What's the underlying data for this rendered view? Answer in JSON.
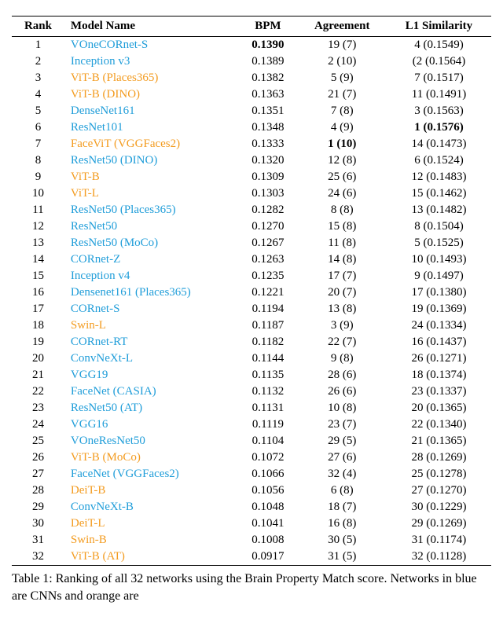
{
  "table": {
    "headers": {
      "rank": "Rank",
      "model": "Model Name",
      "bpm": "BPM",
      "agreement": "Agreement",
      "l1": "L1 Similarity"
    },
    "colors": {
      "cnn": "#1f9dd9",
      "vit": "#f39b1f"
    },
    "rows": [
      {
        "rank": "1",
        "model": "VOneCORnet-S",
        "type": "cnn",
        "bpm": "0.1390",
        "bpm_bold": true,
        "agr": "19 (7)",
        "l1": "4 (0.1549)"
      },
      {
        "rank": "2",
        "model": "Inception v3",
        "type": "cnn",
        "bpm": "0.1389",
        "agr": "2 (10)",
        "l1": "(2 (0.1564)"
      },
      {
        "rank": "3",
        "model": "ViT-B (Places365)",
        "type": "vit",
        "bpm": "0.1382",
        "agr": "5 (9)",
        "l1": "7 (0.1517)"
      },
      {
        "rank": "4",
        "model": "ViT-B (DINO)",
        "type": "vit",
        "bpm": "0.1363",
        "agr": "21 (7)",
        "l1": "11 (0.1491)"
      },
      {
        "rank": "5",
        "model": "DenseNet161",
        "type": "cnn",
        "bpm": "0.1351",
        "agr": "7 (8)",
        "l1": "3 (0.1563)"
      },
      {
        "rank": "6",
        "model": "ResNet101",
        "type": "cnn",
        "bpm": "0.1348",
        "agr": "4 (9)",
        "l1": "1 (0.1576)",
        "l1_bold": true
      },
      {
        "rank": "7",
        "model": "FaceViT (VGGFaces2)",
        "type": "vit",
        "bpm": "0.1333",
        "agr": "1 (10)",
        "agr_bold": true,
        "l1": "14 (0.1473)"
      },
      {
        "rank": "8",
        "model": "ResNet50 (DINO)",
        "type": "cnn",
        "bpm": "0.1320",
        "agr": "12 (8)",
        "l1": "6 (0.1524)"
      },
      {
        "rank": "9",
        "model": "ViT-B",
        "type": "vit",
        "bpm": "0.1309",
        "agr": "25 (6)",
        "l1": "12 (0.1483)"
      },
      {
        "rank": "10",
        "model": "ViT-L",
        "type": "vit",
        "bpm": "0.1303",
        "agr": "24 (6)",
        "l1": "15 (0.1462)"
      },
      {
        "rank": "11",
        "model": "ResNet50 (Places365)",
        "type": "cnn",
        "bpm": "0.1282",
        "agr": "8 (8)",
        "l1": "13 (0.1482)"
      },
      {
        "rank": "12",
        "model": "ResNet50",
        "type": "cnn",
        "bpm": "0.1270",
        "agr": "15 (8)",
        "l1": "8 (0.1504)"
      },
      {
        "rank": "13",
        "model": "ResNet50 (MoCo)",
        "type": "cnn",
        "bpm": "0.1267",
        "agr": "11 (8)",
        "l1": "5 (0.1525)"
      },
      {
        "rank": "14",
        "model": "CORnet-Z",
        "type": "cnn",
        "bpm": "0.1263",
        "agr": "14 (8)",
        "l1": "10 (0.1493)"
      },
      {
        "rank": "15",
        "model": "Inception v4",
        "type": "cnn",
        "bpm": "0.1235",
        "agr": "17 (7)",
        "l1": "9 (0.1497)"
      },
      {
        "rank": "16",
        "model": "Densenet161 (Places365)",
        "type": "cnn",
        "bpm": "0.1221",
        "agr": "20 (7)",
        "l1": "17 (0.1380)"
      },
      {
        "rank": "17",
        "model": "CORnet-S",
        "type": "cnn",
        "bpm": "0.1194",
        "agr": "13 (8)",
        "l1": "19 (0.1369)"
      },
      {
        "rank": "18",
        "model": "Swin-L",
        "type": "vit",
        "bpm": "0.1187",
        "agr": "3 (9)",
        "l1": "24 (0.1334)"
      },
      {
        "rank": "19",
        "model": "CORnet-RT",
        "type": "cnn",
        "bpm": "0.1182",
        "agr": "22 (7)",
        "l1": "16 (0.1437)"
      },
      {
        "rank": "20",
        "model": "ConvNeXt-L",
        "type": "cnn",
        "bpm": "0.1144",
        "agr": "9 (8)",
        "l1": "26 (0.1271)"
      },
      {
        "rank": "21",
        "model": "VGG19",
        "type": "cnn",
        "bpm": "0.1135",
        "agr": "28 (6)",
        "l1": "18 (0.1374)"
      },
      {
        "rank": "22",
        "model": "FaceNet (CASIA)",
        "type": "cnn",
        "bpm": "0.1132",
        "agr": "26 (6)",
        "l1": "23 (0.1337)"
      },
      {
        "rank": "23",
        "model": "ResNet50 (AT)",
        "type": "cnn",
        "bpm": "0.1131",
        "agr": "10 (8)",
        "l1": "20 (0.1365)"
      },
      {
        "rank": "24",
        "model": "VGG16",
        "type": "cnn",
        "bpm": "0.1119",
        "agr": "23 (7)",
        "l1": "22 (0.1340)"
      },
      {
        "rank": "25",
        "model": "VOneResNet50",
        "type": "cnn",
        "bpm": "0.1104",
        "agr": "29 (5)",
        "l1": "21 (0.1365)"
      },
      {
        "rank": "26",
        "model": "ViT-B (MoCo)",
        "type": "vit",
        "bpm": "0.1072",
        "agr": "27 (6)",
        "l1": "28 (0.1269)"
      },
      {
        "rank": "27",
        "model": "FaceNet (VGGFaces2)",
        "type": "cnn",
        "bpm": "0.1066",
        "agr": "32 (4)",
        "l1": "25 (0.1278)"
      },
      {
        "rank": "28",
        "model": "DeiT-B",
        "type": "vit",
        "bpm": "0.1056",
        "agr": "6 (8)",
        "l1": "27 (0.1270)"
      },
      {
        "rank": "29",
        "model": "ConvNeXt-B",
        "type": "cnn",
        "bpm": "0.1048",
        "agr": "18 (7)",
        "l1": "30 (0.1229)"
      },
      {
        "rank": "30",
        "model": "DeiT-L",
        "type": "vit",
        "bpm": "0.1041",
        "agr": "16 (8)",
        "l1": "29 (0.1269)"
      },
      {
        "rank": "31",
        "model": "Swin-B",
        "type": "vit",
        "bpm": "0.1008",
        "agr": "30 (5)",
        "l1": "31 (0.1174)"
      },
      {
        "rank": "32",
        "model": "ViT-B (AT)",
        "type": "vit",
        "bpm": "0.0917",
        "agr": "31 (5)",
        "l1": "32 (0.1128)"
      }
    ]
  },
  "caption": "Table 1: Ranking of all 32 networks using the Brain Property Match score.  Networks in blue are CNNs and orange are"
}
